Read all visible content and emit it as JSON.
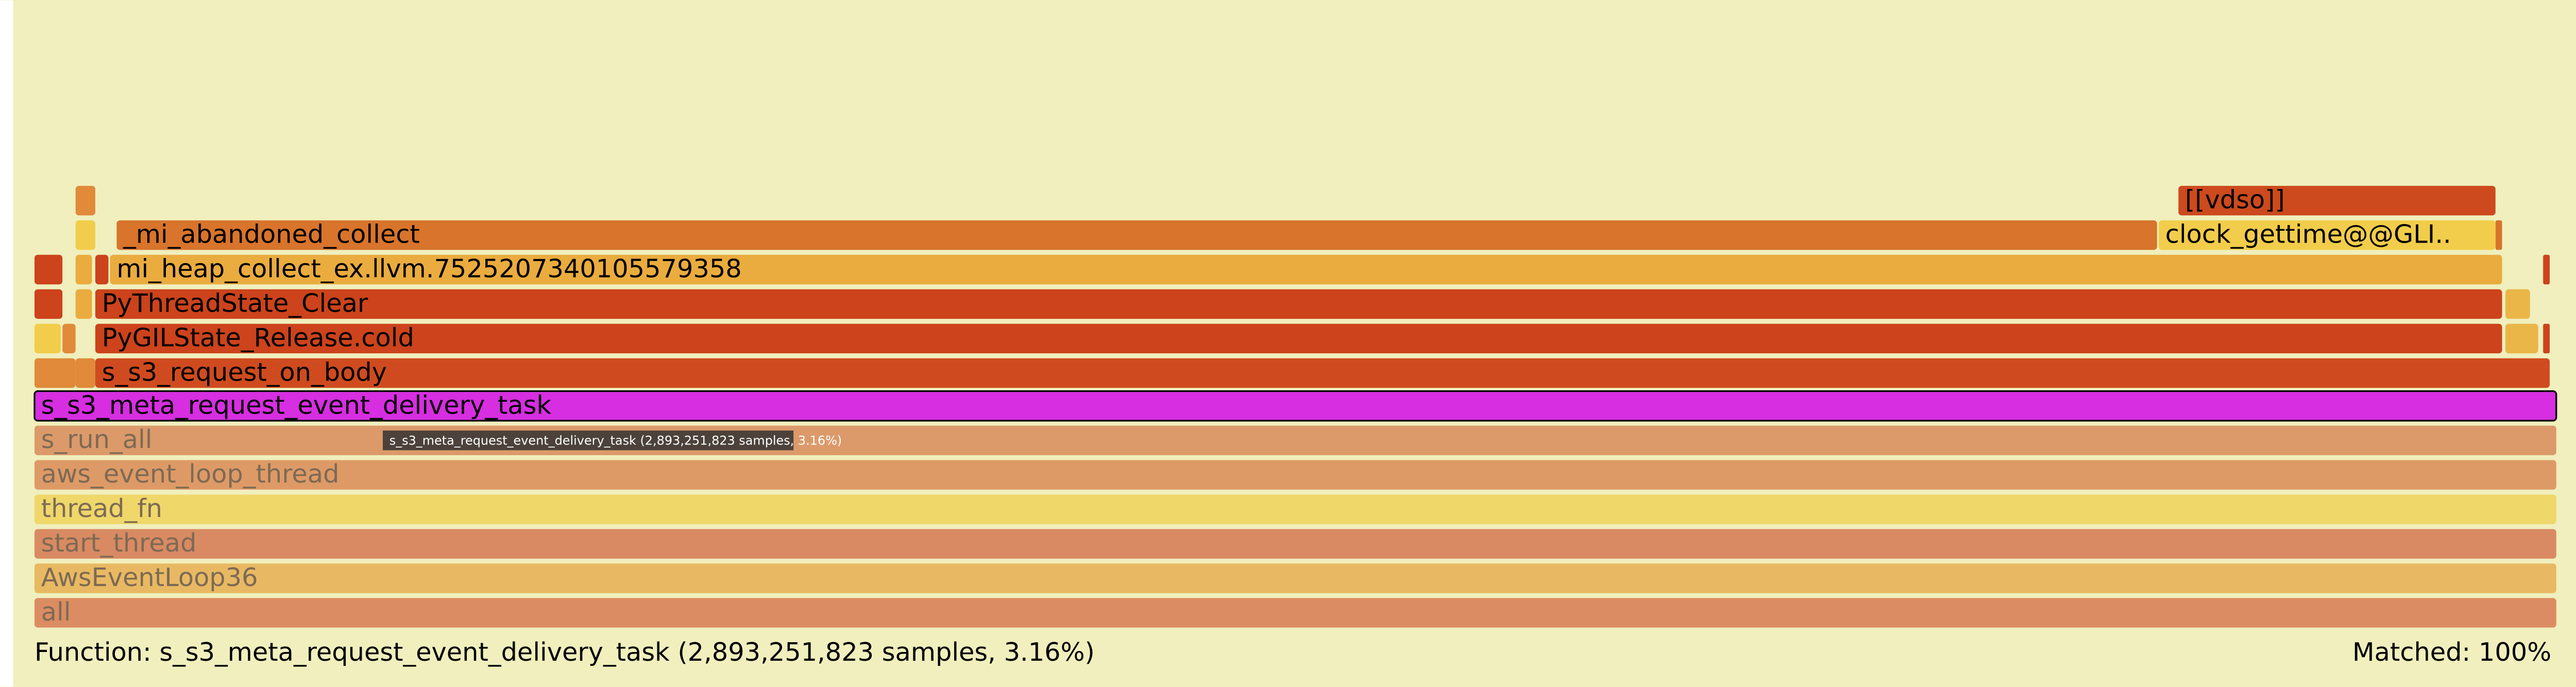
{
  "frames": [
    {
      "label": "[[vdso]]"
    },
    {
      "label": "_mi_abandoned_collect"
    },
    {
      "label": "clock_gettime@@GLI.."
    },
    {
      "label": "mi_heap_collect_ex.llvm.7525207340105579358"
    },
    {
      "label": "PyThreadState_Clear"
    },
    {
      "label": "PyGILState_Release.cold"
    },
    {
      "label": "s_s3_request_on_body"
    },
    {
      "label": "s_s3_meta_request_event_delivery_task"
    },
    {
      "label": "s_run_all"
    },
    {
      "label": "aws_event_loop_thread"
    },
    {
      "label": "thread_fn"
    },
    {
      "label": "start_thread"
    },
    {
      "label": "AwsEventLoop36"
    },
    {
      "label": "all"
    }
  ],
  "tooltip": "s_s3_meta_request_event_delivery_task (2,893,251,823 samples, 3.16%)",
  "footer": {
    "function": "Function: s_s3_meta_request_event_delivery_task (2,893,251,823 samples, 3.16%)",
    "matched": "Matched: 100%"
  }
}
